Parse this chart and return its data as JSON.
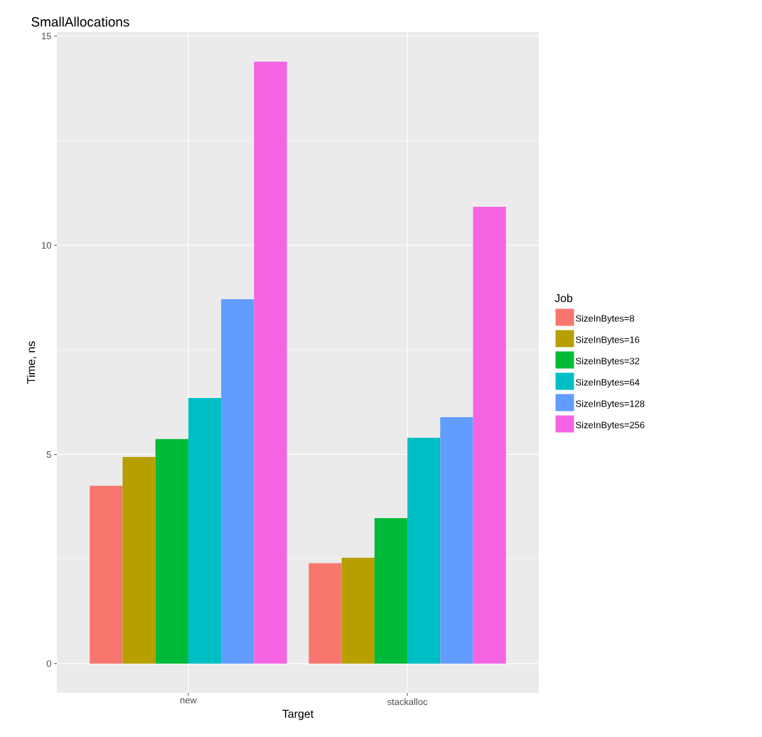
{
  "chart_data": {
    "type": "bar",
    "title": "SmallAllocations",
    "xlabel": "Target",
    "ylabel": "Time, ns",
    "legend_title": "Job",
    "categories": [
      "new",
      "stackalloc"
    ],
    "series": [
      {
        "name": "SizeInBytes=8",
        "color": "#F8766D",
        "values": [
          4.25,
          2.4
        ]
      },
      {
        "name": "SizeInBytes=16",
        "color": "#B79F00",
        "values": [
          4.94,
          2.53
        ]
      },
      {
        "name": "SizeInBytes=32",
        "color": "#00BA38",
        "values": [
          5.37,
          3.48
        ]
      },
      {
        "name": "SizeInBytes=64",
        "color": "#00BFC4",
        "values": [
          6.35,
          5.4
        ]
      },
      {
        "name": "SizeInBytes=128",
        "color": "#619CFF",
        "values": [
          8.71,
          5.89
        ]
      },
      {
        "name": "SizeInBytes=256",
        "color": "#F564E3",
        "values": [
          14.39,
          10.92
        ]
      }
    ],
    "ylim": [
      -0.7,
      15.1
    ],
    "yticks": [
      0,
      5,
      10,
      15
    ],
    "grid": true,
    "legend": "right"
  }
}
